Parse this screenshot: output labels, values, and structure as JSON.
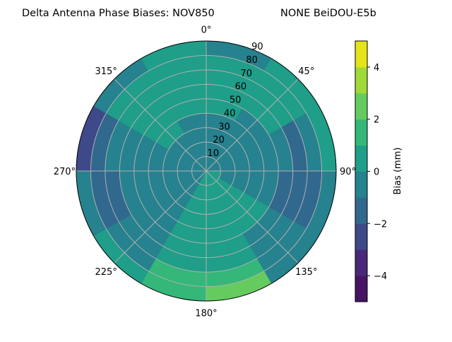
{
  "chart_data": {
    "type": "heatmap",
    "projection": "polar",
    "title_left": "Delta Antenna Phase Biases: NOV850",
    "title_right": "NONE BeiDOU-E5b",
    "theta_zero": "north",
    "theta_direction": "clockwise",
    "theta_ticks": [
      "0°",
      "45°",
      "90°",
      "135°",
      "180°",
      "225°",
      "270°",
      "315°"
    ],
    "theta_tick_values": [
      0,
      45,
      90,
      135,
      180,
      225,
      270,
      315
    ],
    "r_ticks": [
      "10",
      "20",
      "30",
      "40",
      "50",
      "60",
      "70",
      "80",
      "90"
    ],
    "r_tick_values": [
      10,
      20,
      30,
      40,
      50,
      60,
      70,
      80,
      90
    ],
    "rlim": [
      0,
      90
    ],
    "grid": true,
    "azimuth_centers": [
      15,
      45,
      75,
      105,
      135,
      165,
      195,
      225,
      255,
      285,
      315,
      345
    ],
    "zenith_centers": [
      5,
      15,
      25,
      35,
      45,
      55,
      65,
      75,
      85
    ],
    "bias_mm": [
      [
        -0.5,
        -0.5,
        -0.5,
        -0.5,
        0.5,
        0.5,
        0.5,
        0.5,
        -0.5
      ],
      [
        -0.5,
        -0.5,
        -0.5,
        -0.5,
        -0.5,
        0.5,
        0.5,
        0.5,
        0.5
      ],
      [
        -0.5,
        -0.5,
        -0.5,
        -0.5,
        -0.5,
        -0.5,
        -1.5,
        -0.5,
        0.5
      ],
      [
        0.5,
        -0.5,
        -0.5,
        -0.5,
        -0.5,
        -1.5,
        -1.5,
        -1.5,
        -0.5
      ],
      [
        0.5,
        0.5,
        0.5,
        0.5,
        0.5,
        -0.5,
        -0.5,
        -0.5,
        -0.5
      ],
      [
        0.5,
        0.5,
        0.5,
        0.5,
        0.5,
        0.5,
        0.5,
        1.5,
        2.5
      ],
      [
        0.5,
        0.5,
        0.5,
        0.5,
        0.5,
        0.5,
        0.5,
        1.5,
        1.5
      ],
      [
        -0.5,
        -0.5,
        -0.5,
        -0.5,
        -0.5,
        -0.5,
        -0.5,
        -0.5,
        0.5
      ],
      [
        -0.5,
        -0.5,
        -0.5,
        -0.5,
        -0.5,
        -0.5,
        -1.5,
        -1.5,
        -0.5
      ],
      [
        -0.5,
        -0.5,
        -0.5,
        -0.5,
        -0.5,
        -0.5,
        -0.5,
        -1.5,
        -2.5
      ],
      [
        -0.5,
        -0.5,
        -0.5,
        0.5,
        0.5,
        0.5,
        0.5,
        0.5,
        -0.5
      ],
      [
        -0.5,
        -0.5,
        -0.5,
        -0.5,
        0.5,
        0.5,
        0.5,
        0.5,
        0.5
      ]
    ],
    "colorbar": {
      "label": "Bias (mm)",
      "levels": [
        -5,
        -4,
        -3,
        -2,
        -1,
        0,
        1,
        2,
        3,
        4,
        5
      ],
      "ticks": [
        "−4",
        "−2",
        "0",
        "2",
        "4"
      ],
      "tick_values": [
        -4,
        -2,
        0,
        2,
        4
      ],
      "colormap": "viridis",
      "colors": [
        "#471365",
        "#482878",
        "#3e4989",
        "#31688e",
        "#26828e",
        "#1f9e89",
        "#35b779",
        "#65cb5e",
        "#a0da39",
        "#e4e419"
      ]
    }
  }
}
